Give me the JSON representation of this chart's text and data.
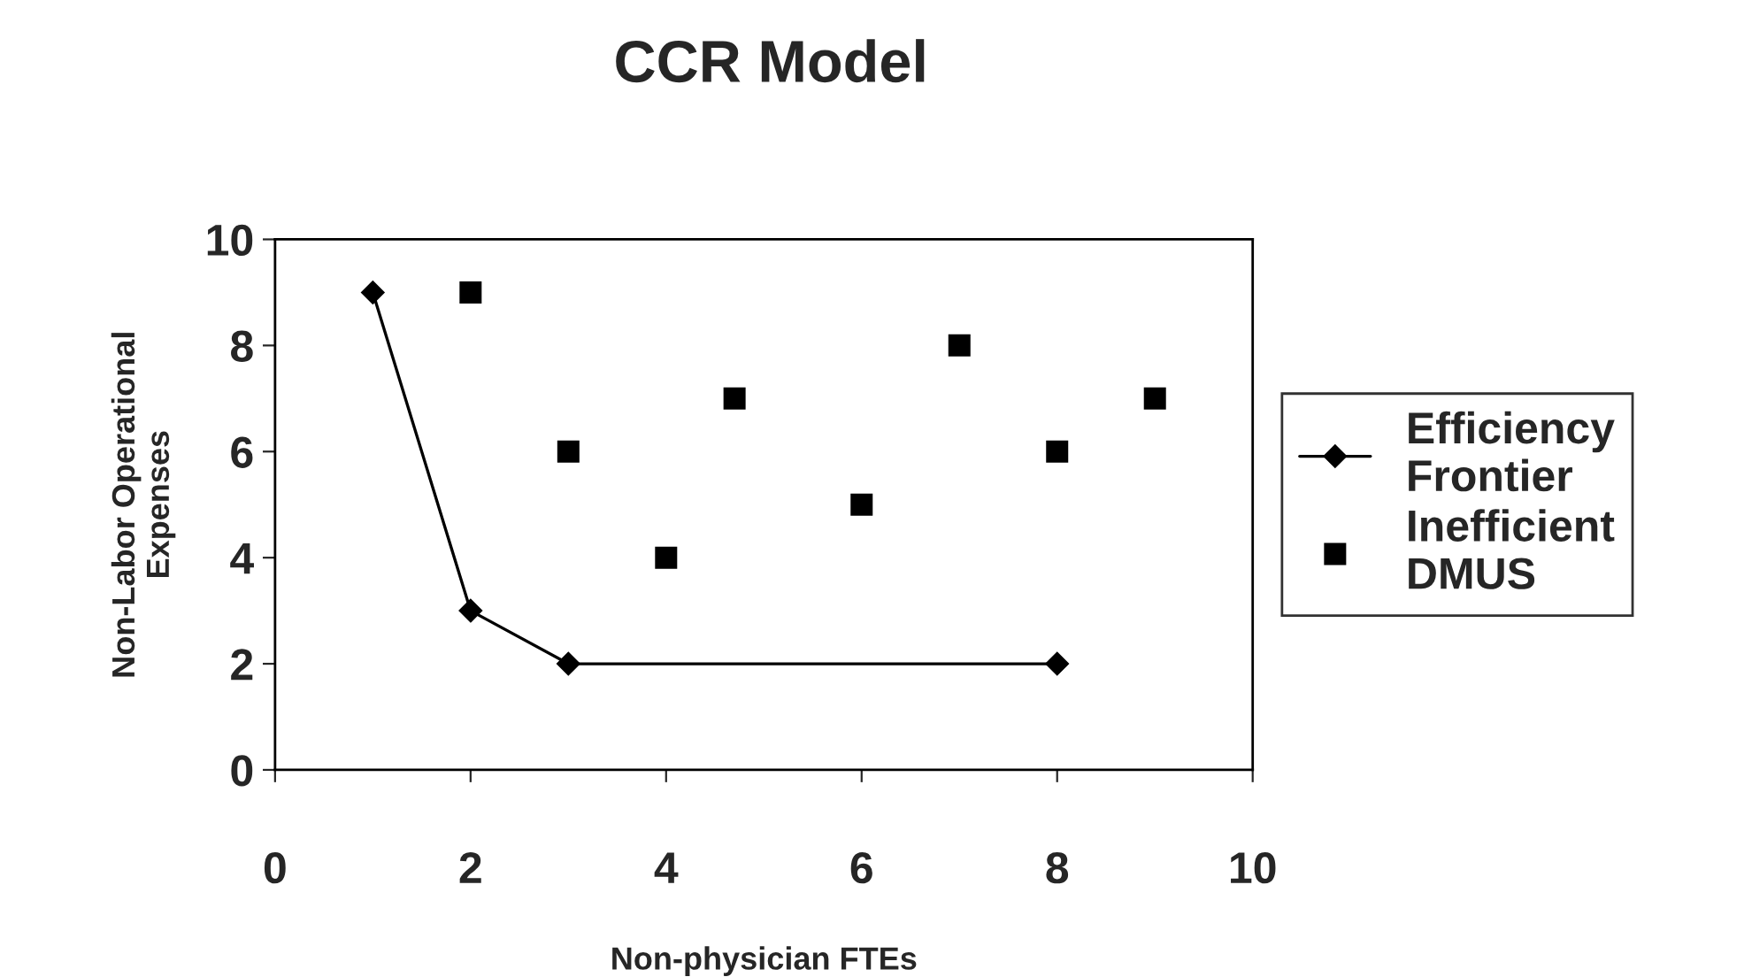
{
  "chart_data": {
    "type": "scatter",
    "title": "CCR Model",
    "xlabel": "Non-physician FTEs",
    "ylabel": "Non-Labor Operational\nExpenses",
    "series": [
      {
        "name": "Efficiency\nFrontier",
        "type": "line",
        "color": "#000000",
        "marker": "diamond",
        "x": [
          1,
          2,
          3,
          8
        ],
        "values": [
          9,
          3,
          2,
          2
        ]
      },
      {
        "name": "Inefficient\nDMUS",
        "type": "scatter",
        "color": "#000000",
        "marker": "square",
        "x": [
          2,
          3,
          4,
          4.7,
          6,
          7,
          8,
          9
        ],
        "values": [
          9,
          6,
          4,
          7,
          5,
          8,
          6,
          7
        ]
      }
    ],
    "xlim": [
      0,
      10
    ],
    "xticks": [
      0,
      2,
      4,
      6,
      8,
      10
    ],
    "ylim": [
      0,
      10
    ],
    "yticks": [
      0,
      2,
      4,
      6,
      8,
      10
    ],
    "grid": false,
    "legend": "right"
  }
}
